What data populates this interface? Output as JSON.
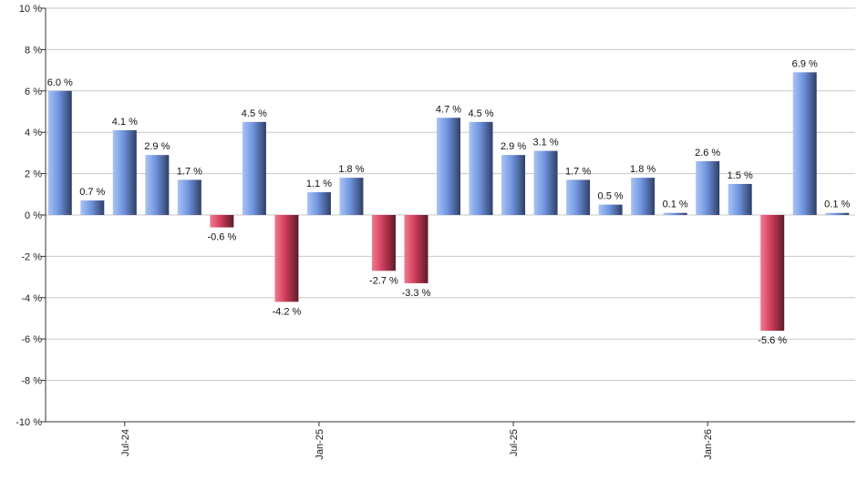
{
  "chart_data": {
    "type": "bar",
    "title": "",
    "xlabel": "",
    "ylabel": "",
    "ylim": [
      -10,
      10
    ],
    "y_ticks": [
      -10,
      -8,
      -6,
      -4,
      -2,
      0,
      2,
      4,
      6,
      8,
      10
    ],
    "y_tick_suffix": " %",
    "grid": true,
    "legend": "none",
    "x_tick_labels": [
      {
        "index": 2,
        "label": "Jul-24"
      },
      {
        "index": 8,
        "label": "Jan-25"
      },
      {
        "index": 14,
        "label": "Jul-25"
      },
      {
        "index": 20,
        "label": "Jan-26"
      }
    ],
    "values": [
      6.0,
      0.7,
      4.1,
      2.9,
      1.7,
      -0.6,
      4.5,
      -4.2,
      1.1,
      1.8,
      -2.7,
      -3.3,
      4.7,
      4.5,
      2.9,
      3.1,
      1.7,
      0.5,
      1.8,
      0.1,
      2.6,
      1.5,
      -5.6,
      6.9,
      0.1
    ],
    "data_labels": [
      "6.0 %",
      "0.7 %",
      "4.1 %",
      "2.9 %",
      "1.7 %",
      "-0.6 %",
      "4.5 %",
      "-4.2 %",
      "1.1 %",
      "1.8 %",
      "-2.7 %",
      "-3.3 %",
      "4.7 %",
      "4.5 %",
      "2.9 %",
      "3.1 %",
      "1.7 %",
      "0.5 %",
      "1.8 %",
      "0.1 %",
      "2.6 %",
      "1.5 %",
      "-5.6 %",
      "6.9 %",
      "0.1 %"
    ],
    "colors": {
      "positive_light": "#a9c4f5",
      "positive_mid": "#6f93de",
      "positive_dark": "#2f3f66",
      "negative_light": "#f07a91",
      "negative_mid": "#d03c5a",
      "negative_dark": "#5a1d29",
      "grid": "#c8c8c8",
      "axis": "#333333"
    }
  }
}
